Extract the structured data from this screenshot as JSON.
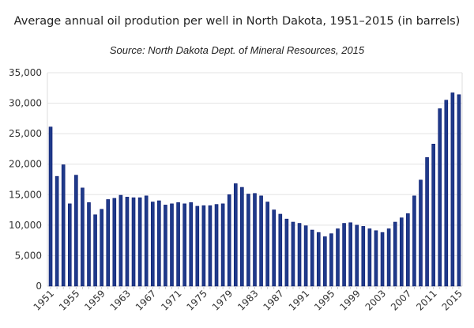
{
  "chart_data": {
    "type": "bar",
    "title": "Average annual oil prodution per well in North Dakota, 1951–2015 (in barrels)",
    "subtitle": "Source: North Dakota Dept. of Mineral Resources, 2015",
    "xlabel": "",
    "ylabel": "",
    "ylim": [
      0,
      35000
    ],
    "yticks": [
      "0",
      "5,000",
      "10,000",
      "15,000",
      "20,000",
      "25,000",
      "30,000",
      "35,000"
    ],
    "grid": true,
    "bar_color": "#1f3a8a",
    "categories": [
      1951,
      1952,
      1953,
      1954,
      1955,
      1956,
      1957,
      1958,
      1959,
      1960,
      1961,
      1962,
      1963,
      1964,
      1965,
      1966,
      1967,
      1968,
      1969,
      1970,
      1971,
      1972,
      1973,
      1974,
      1975,
      1976,
      1977,
      1978,
      1979,
      1980,
      1981,
      1982,
      1983,
      1984,
      1985,
      1986,
      1987,
      1988,
      1989,
      1990,
      1991,
      1992,
      1993,
      1994,
      1995,
      1996,
      1997,
      1998,
      1999,
      2000,
      2001,
      2002,
      2003,
      2004,
      2005,
      2006,
      2007,
      2008,
      2009,
      2010,
      2011,
      2012,
      2013,
      2014,
      2015
    ],
    "xtick_labels": [
      "1951",
      "1955",
      "1959",
      "1963",
      "1967",
      "1971",
      "1975",
      "1979",
      "1983",
      "1987",
      "1991",
      "1995",
      "1999",
      "2003",
      "2007",
      "2011",
      "2015"
    ],
    "values": [
      26100,
      18000,
      19900,
      13500,
      18200,
      16100,
      13700,
      11700,
      12600,
      14200,
      14400,
      14900,
      14600,
      14500,
      14500,
      14800,
      13800,
      14000,
      13300,
      13500,
      13700,
      13500,
      13700,
      13100,
      13200,
      13200,
      13400,
      13500,
      15000,
      16800,
      16200,
      15100,
      15200,
      14800,
      13800,
      12500,
      11800,
      11000,
      10500,
      10300,
      9900,
      9200,
      8800,
      8100,
      8600,
      9400,
      10300,
      10400,
      10000,
      9800,
      9400,
      9100,
      8800,
      9400,
      10500,
      11200,
      11900,
      14800,
      17400,
      21100,
      23300,
      29100,
      30500,
      31700,
      31400
    ]
  }
}
